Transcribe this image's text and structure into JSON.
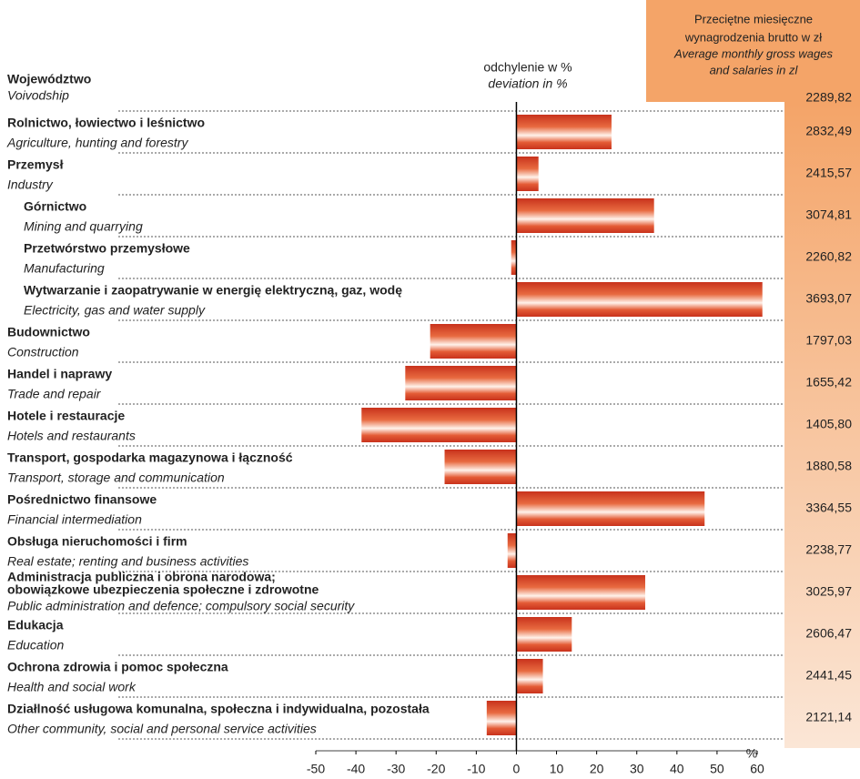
{
  "chart_data": {
    "type": "bar",
    "header": {
      "pl": [
        "Przeciętne miesięczne",
        "wynagrodzenia brutto w zł"
      ],
      "en": [
        "Average monthly gross wages",
        "and salaries in zl"
      ]
    },
    "axis_title": {
      "pl": "odchylenie w %",
      "en": "deviation in %"
    },
    "unit": "%",
    "total": {
      "pl": "Województwo",
      "en": "Voivodship",
      "wage": "2289,82"
    },
    "categories": [
      [
        "Rolnictwo, łowiectwo i leśnictwo"
      ],
      [
        "Przemysł"
      ],
      [
        "Górnictwo"
      ],
      [
        "Przetwórstwo przemysłowe"
      ],
      [
        "Wytwarzanie i zaopatrywanie w energię elektryczną, gaz,  wodę"
      ],
      [
        "Budownictwo"
      ],
      [
        "Handel i naprawy"
      ],
      [
        "Hotele i restauracje"
      ],
      [
        "Transport, gospodarka magazynowa i łączność"
      ],
      [
        "Pośrednictwo finansowe"
      ],
      [
        "Obsługa nieruchomości i firm"
      ],
      [
        "Administracja publiczna i obrona narodowa;",
        "obowiązkowe ubezpieczenia społeczne i zdrowotne"
      ],
      [
        "Edukacja"
      ],
      [
        "Ochrona zdrowia i pomoc społeczna"
      ],
      [
        "Działlność usługowa komunalna, społeczna i indywidualna, pozostała"
      ]
    ],
    "categories_en": [
      "Agriculture, hunting and forestry",
      "Industry",
      "Mining and quarrying",
      "Manufacturing",
      "Electricity, gas and water supply",
      "Construction",
      "Trade and repair",
      "Hotels and restaurants",
      "Transport, storage and communication",
      "Financial intermediation",
      "Real estate; renting and business activities",
      "Public administration and defence; compulsory social security",
      "Education",
      "Health and social work",
      "Other community, social and personal service activities"
    ],
    "wages": [
      "2832,49",
      "2415,57",
      "3074,81",
      "2260,82",
      "3693,07",
      "1797,03",
      "1655,42",
      "1405,80",
      "1880,58",
      "3364,55",
      "2238,77",
      "3025,97",
      "2606,47",
      "2441,45",
      "2121,14"
    ],
    "values": [
      23.7,
      5.5,
      34.3,
      -1.3,
      61.3,
      -21.5,
      -27.7,
      -38.6,
      -17.9,
      46.9,
      -2.2,
      32.1,
      13.8,
      6.6,
      -7.4
    ],
    "color": "#c8321c",
    "xlim": [
      -50,
      60
    ],
    "xticks": [
      -50,
      -40,
      -30,
      -20,
      -10,
      0,
      10,
      20,
      30,
      40,
      50,
      60
    ]
  }
}
